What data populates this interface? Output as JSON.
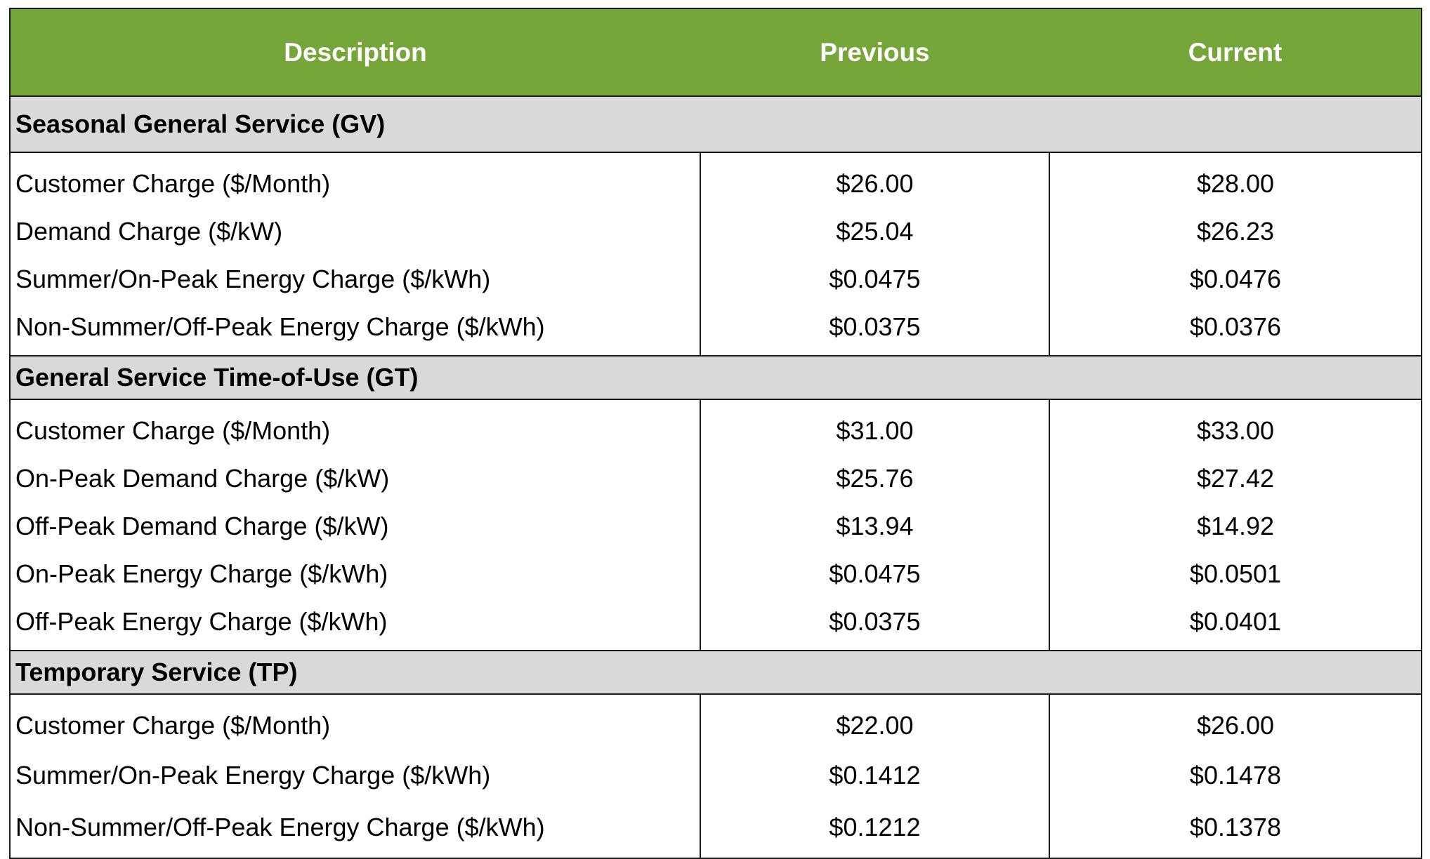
{
  "table": {
    "columns": [
      "Description",
      "Previous",
      "Current"
    ],
    "sections": [
      {
        "title": "Seasonal General Service (GV)",
        "rows": [
          {
            "description": "Customer Charge ($/Month)",
            "previous": "$26.00",
            "current": "$28.00"
          },
          {
            "description": "Demand Charge ($/kW)",
            "previous": "$25.04",
            "current": "$26.23"
          },
          {
            "description": "Summer/On-Peak Energy Charge ($/kWh)",
            "previous": "$0.0475",
            "current": "$0.0476"
          },
          {
            "description": "Non-Summer/Off-Peak Energy Charge ($/kWh)",
            "previous": "$0.0375",
            "current": "$0.0376"
          }
        ]
      },
      {
        "title": "General Service Time-of-Use (GT)",
        "rows": [
          {
            "description": "Customer Charge ($/Month)",
            "previous": "$31.00",
            "current": "$33.00"
          },
          {
            "description": "On-Peak Demand Charge ($/kW)",
            "previous": "$25.76",
            "current": "$27.42"
          },
          {
            "description": "Off-Peak Demand Charge ($/kW)",
            "previous": "$13.94",
            "current": "$14.92"
          },
          {
            "description": "On-Peak Energy Charge ($/kWh)",
            "previous": "$0.0475",
            "current": "$0.0501"
          },
          {
            "description": "Off-Peak Energy Charge ($/kWh)",
            "previous": "$0.0375",
            "current": "$0.0401"
          }
        ]
      },
      {
        "title": "Temporary Service (TP)",
        "rows": [
          {
            "description": "Customer Charge ($/Month)",
            "previous": "$22.00",
            "current": "$26.00"
          },
          {
            "description": "Summer/On-Peak Energy Charge ($/kWh)",
            "previous": "$0.1412",
            "current": "$0.1478"
          },
          {
            "description": "Non-Summer/Off-Peak Energy Charge ($/kWh)",
            "previous": "$0.1212",
            "current": "$0.1378"
          }
        ]
      }
    ]
  },
  "colors": {
    "header_background": "#76a639",
    "header_text": "#ffffff",
    "section_background": "#d9d9d9",
    "border": "#1a1a1a"
  }
}
